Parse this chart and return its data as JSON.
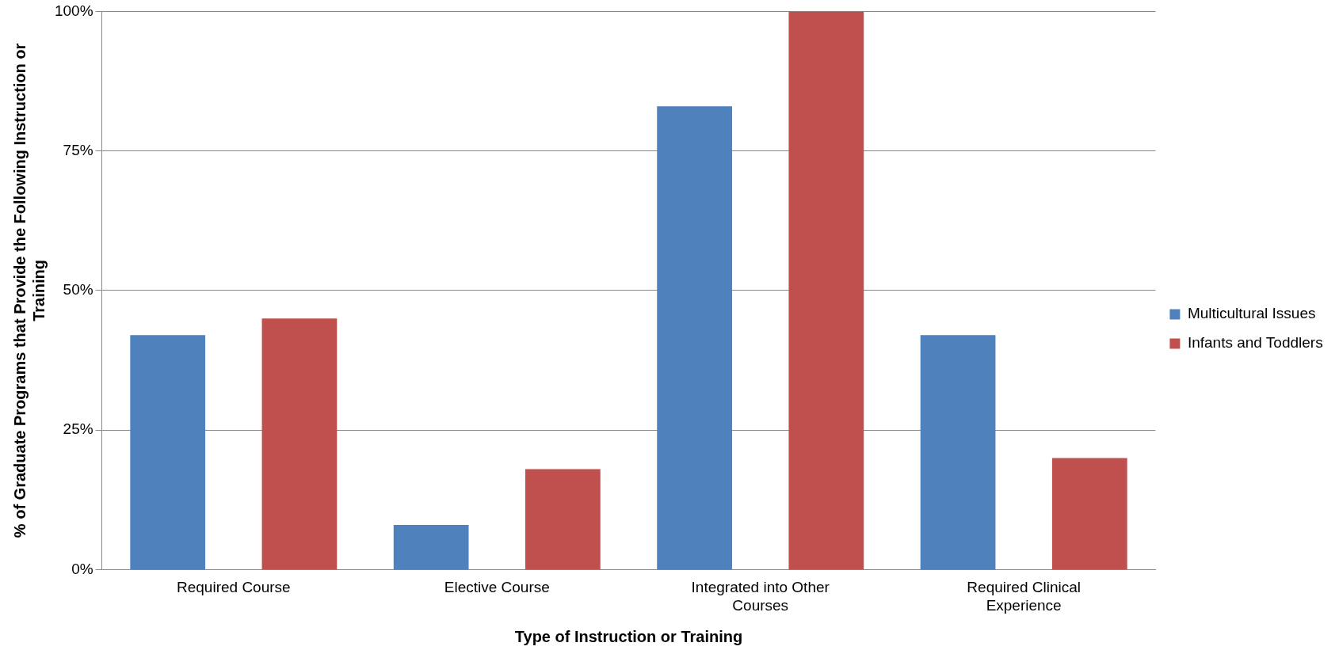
{
  "chart_data": {
    "type": "bar",
    "xlabel": "Type of Instruction or Training",
    "ylabel": "% of Graduate Programs that Provide the Following Instruction or Training",
    "categories": [
      "Required Course",
      "Elective Course",
      "Integrated into Other Courses",
      "Required Clinical Experience"
    ],
    "series": [
      {
        "name": "Multicultural Issues",
        "color": "#4f81bd",
        "values": [
          42,
          8,
          83,
          42
        ]
      },
      {
        "name": "Infants and Toddlers",
        "color": "#c0504d",
        "values": [
          45,
          18,
          100,
          20
        ]
      }
    ],
    "ylim": [
      0,
      100
    ],
    "yticks": [
      {
        "value": 0,
        "label": "0%"
      },
      {
        "value": 25,
        "label": "25%"
      },
      {
        "value": 50,
        "label": "50%"
      },
      {
        "value": 75,
        "label": "75%"
      },
      {
        "value": 100,
        "label": "100%"
      }
    ],
    "grid": "y",
    "legend": "right"
  }
}
